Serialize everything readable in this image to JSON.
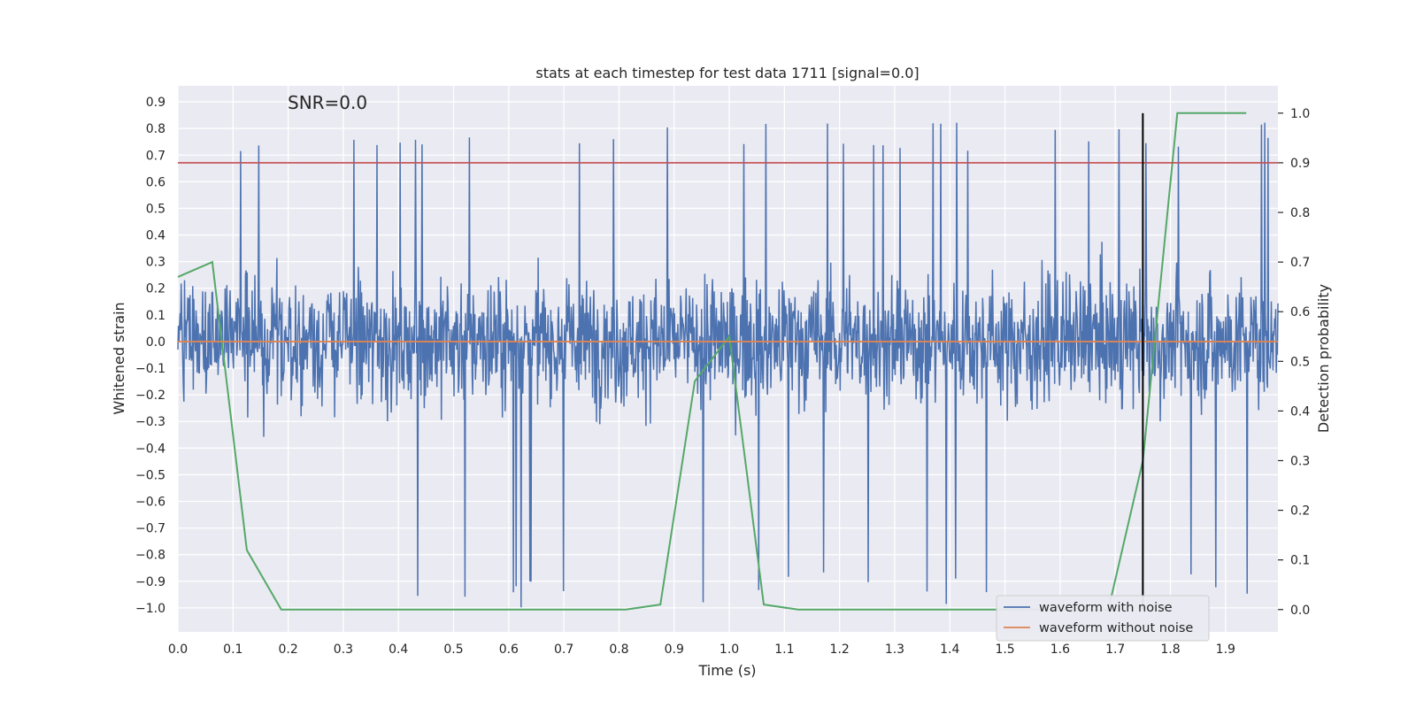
{
  "chart_data": {
    "type": "line",
    "title": "stats at each timestep for test data 1711 [signal=0.0]",
    "annotation": "SNR=0.0",
    "xlabel": "Time (s)",
    "ylabel_left": "Whitened strain",
    "ylabel_right": "Detection probability",
    "xlim": [
      0.0,
      1.995
    ],
    "ylim_left": [
      -1.09,
      0.96
    ],
    "ylim_right": [
      -0.045,
      1.055
    ],
    "x_ticks": [
      "0.0",
      "0.1",
      "0.2",
      "0.3",
      "0.4",
      "0.5",
      "0.6",
      "0.7",
      "0.8",
      "0.9",
      "1.0",
      "1.1",
      "1.2",
      "1.3",
      "1.4",
      "1.5",
      "1.6",
      "1.7",
      "1.8",
      "1.9"
    ],
    "y_left_ticks": [
      "0.9",
      "0.8",
      "0.7",
      "0.6",
      "0.5",
      "0.4",
      "0.3",
      "0.2",
      "0.1",
      "0.0",
      "−0.1",
      "−0.2",
      "−0.3",
      "−0.4",
      "−0.5",
      "−0.6",
      "−0.7",
      "−0.8",
      "−0.9",
      "−1.0"
    ],
    "y_right_ticks": [
      "0.0",
      "0.1",
      "0.2",
      "0.3",
      "0.4",
      "0.5",
      "0.6",
      "0.7",
      "0.8",
      "0.9",
      "1.0"
    ],
    "grid": true,
    "legend_position": "lower-right",
    "colors": {
      "background": "#eaeaf2",
      "grid": "#ffffff",
      "noisy": "#4c72b0",
      "clean": "#dd8452",
      "probability": "#55a868",
      "threshold": "#c44e52",
      "marker": "#000000"
    },
    "series": [
      {
        "name": "waveform with noise",
        "axis": "left",
        "style": "dense noise",
        "x_range": [
          0.0,
          1.995
        ],
        "approx_range": [
          -1.0,
          0.84
        ]
      },
      {
        "name": "waveform without noise",
        "axis": "left",
        "x": [
          0.0,
          1.995
        ],
        "values": [
          0.0,
          0.0
        ]
      },
      {
        "axis": "right",
        "x": [
          0.0,
          0.0625,
          0.125,
          0.1875,
          0.25,
          0.3125,
          0.375,
          0.4375,
          0.5,
          0.5625,
          0.625,
          0.6875,
          0.75,
          0.8125,
          0.875,
          0.9375,
          1.0,
          1.0625,
          1.125,
          1.1875,
          1.25,
          1.3125,
          1.375,
          1.4375,
          1.5,
          1.5625,
          1.625,
          1.6875,
          1.75,
          1.8125,
          1.875,
          1.9375
        ],
        "values": [
          0.67,
          0.7,
          0.12,
          0.0,
          0.0,
          0.0,
          0.0,
          0.0,
          0.0,
          0.0,
          0.0,
          0.0,
          0.0,
          0.0,
          0.01,
          0.46,
          0.55,
          0.01,
          0.0,
          0.0,
          0.0,
          0.0,
          0.0,
          0.0,
          0.0,
          0.0,
          0.0,
          0.0,
          0.3,
          1.0,
          1.0,
          1.0
        ]
      },
      {
        "axis": "right",
        "style": "threshold",
        "x": [
          0.0,
          1.995
        ],
        "values": [
          0.9,
          0.9
        ]
      }
    ],
    "vertical_marker": {
      "x": 1.75,
      "y_range": [
        0.0,
        1.0
      ]
    }
  }
}
